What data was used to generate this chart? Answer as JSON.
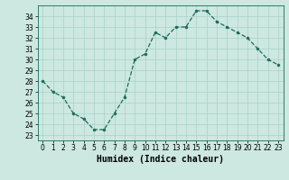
{
  "x": [
    0,
    1,
    2,
    3,
    4,
    5,
    6,
    7,
    8,
    9,
    10,
    11,
    12,
    13,
    14,
    15,
    16,
    17,
    18,
    19,
    20,
    21,
    22,
    23
  ],
  "y": [
    28,
    27,
    26.5,
    25,
    24.5,
    23.5,
    23.5,
    25,
    26.5,
    30,
    30.5,
    32.5,
    32,
    33,
    33,
    34.5,
    34.5,
    33.5,
    33,
    32.5,
    32,
    31,
    30,
    29.5
  ],
  "line_color": "#1a6b5a",
  "marker": "o",
  "markersize": 2.0,
  "linewidth": 0.9,
  "bg_color": "#cce8e0",
  "grid_color": "#aad0c8",
  "xlabel": "Humidex (Indice chaleur)",
  "xlim": [
    -0.5,
    23.5
  ],
  "ylim": [
    22.5,
    35
  ],
  "yticks": [
    23,
    24,
    25,
    26,
    27,
    28,
    29,
    30,
    31,
    32,
    33,
    34
  ],
  "xticks": [
    0,
    1,
    2,
    3,
    4,
    5,
    6,
    7,
    8,
    9,
    10,
    11,
    12,
    13,
    14,
    15,
    16,
    17,
    18,
    19,
    20,
    21,
    22,
    23
  ],
  "tick_fontsize": 5.5,
  "xlabel_fontsize": 7.0,
  "xlabel_fontweight": "bold"
}
